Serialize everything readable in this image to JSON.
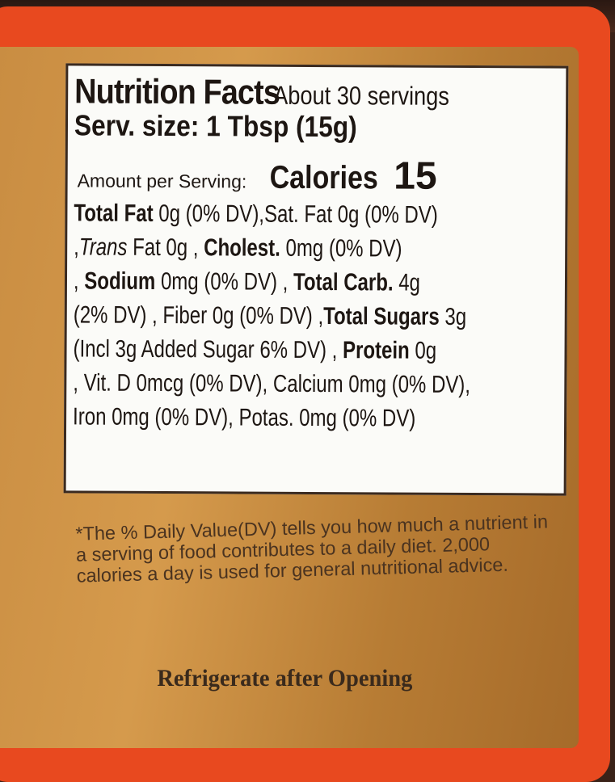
{
  "colors": {
    "border": "#e8491f",
    "label": "#c98d42",
    "panel": "#fbfbf8",
    "text": "#1d1612"
  },
  "panel": {
    "title": "Nutrition Facts",
    "servings": "About 30 servings",
    "serving_size": "Serv. size: 1 Tbsp (15g)",
    "amount_label": "Amount per Serving:",
    "calories_label": "Calories",
    "calories_value": "15",
    "lines": [
      [
        {
          "t": "Total Fat",
          "b": true
        },
        {
          "t": " 0g (0% DV),Sat. Fat 0g (0% DV)"
        }
      ],
      [
        {
          "t": ",",
          "b": false
        },
        {
          "t": "Trans",
          "i": true
        },
        {
          "t": " Fat 0g , "
        },
        {
          "t": "Cholest.",
          "b": true
        },
        {
          "t": "  0mg  (0% DV)"
        }
      ],
      [
        {
          "t": ", "
        },
        {
          "t": "Sodium",
          "b": true
        },
        {
          "t": "  0mg  (0% DV) , "
        },
        {
          "t": "Total Carb.",
          "b": true
        },
        {
          "t": "   4g"
        }
      ],
      [
        {
          "t": "(2% DV) , Fiber 0g  (0% DV) ,"
        },
        {
          "t": "Total Sugars",
          "b": true
        },
        {
          "t": " 3g"
        }
      ],
      [
        {
          "t": "(Incl 3g Added Sugar   6% DV) , "
        },
        {
          "t": "Protein",
          "b": true
        },
        {
          "t": " 0g"
        }
      ],
      [
        {
          "t": ", Vit. D 0mcg (0% DV), Calcium 0mg (0% DV),"
        }
      ],
      [
        {
          "t": "Iron 0mg (0% DV), Potas. 0mg (0% DV)"
        }
      ]
    ]
  },
  "footnote": "*The % Daily Value(DV) tells you how much a nutrient in a serving of food contributes to a daily diet. 2,000 calories a day is used for general nutritional advice.",
  "storage": "Refrigerate after Opening"
}
